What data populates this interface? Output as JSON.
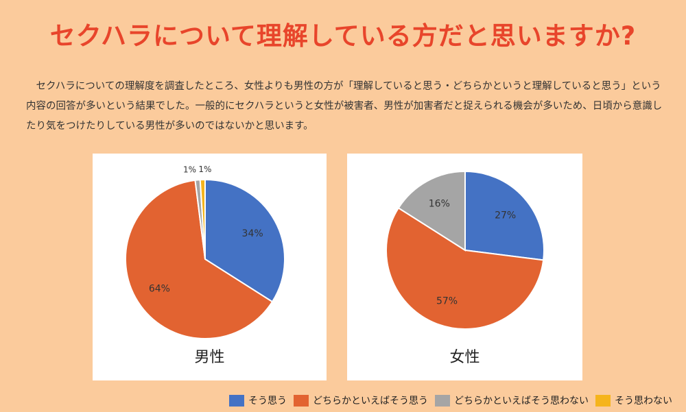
{
  "title": "セクハラについて理解している方だと思いますか?",
  "paragraph": "セクハラについての理解度を調査したところ、女性よりも男性の方が「理解していると思う・どちらかというと理解していると思う」という内容の回答が多いという結果でした。一般的にセクハラというと女性が被害者、男性が加害者だと捉えられる機会が多いため、日頃から意識したり気をつけたりしている男性が多いのではないかと思います。",
  "legend": [
    {
      "label": "そう思う",
      "color": "#4472c4"
    },
    {
      "label": "どちらかといえばそう思う",
      "color": "#e26331"
    },
    {
      "label": "どちらかといえばそう思わない",
      "color": "#a5a5a5"
    },
    {
      "label": "そう思わない",
      "color": "#f5b41c"
    }
  ],
  "chart_data": [
    {
      "type": "pie",
      "name": "男性",
      "categories": [
        "そう思う",
        "どちらかといえばそう思う",
        "どちらかといえばそう思わない",
        "そう思わない"
      ],
      "values": [
        34,
        64,
        1,
        1
      ],
      "labels": [
        "34%",
        "64%",
        "1%",
        "1%"
      ],
      "colors": [
        "#4472c4",
        "#e26331",
        "#a5a5a5",
        "#f5b41c"
      ]
    },
    {
      "type": "pie",
      "name": "女性",
      "categories": [
        "そう思う",
        "どちらかといえばそう思う",
        "どちらかといえばそう思わない",
        "そう思わない"
      ],
      "values": [
        27,
        57,
        16,
        0
      ],
      "labels": [
        "27%",
        "57%",
        "16%",
        ""
      ],
      "colors": [
        "#4472c4",
        "#e26331",
        "#a5a5a5",
        "#f5b41c"
      ]
    }
  ]
}
